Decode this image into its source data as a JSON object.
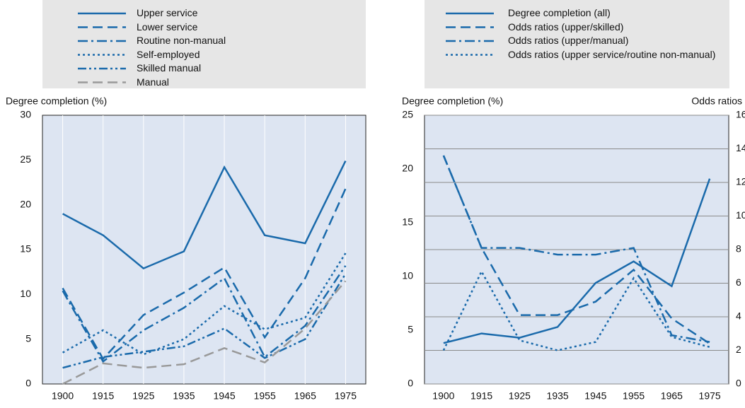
{
  "chart_data": [
    {
      "type": "line",
      "y_label": "Degree completion (%)",
      "categories": [
        "1900",
        "1915",
        "1925",
        "1935",
        "1945",
        "1955",
        "1965",
        "1975"
      ],
      "ylim": [
        0,
        30
      ],
      "yticks": [
        0,
        5,
        10,
        15,
        20,
        25,
        30
      ],
      "grid": "x",
      "series": [
        {
          "name": "Upper service",
          "color": "#1a6aab",
          "dash": "solid",
          "values": [
            19.0,
            16.6,
            12.9,
            14.8,
            24.2,
            16.6,
            15.7,
            24.9
          ]
        },
        {
          "name": "Lower service",
          "color": "#1a6aab",
          "dash": "dash",
          "values": [
            10.7,
            2.8,
            7.7,
            10.2,
            13.0,
            5.2,
            11.8,
            21.8
          ]
        },
        {
          "name": "Routine non-manual",
          "color": "#1a6aab",
          "dash": "dashdot",
          "values": [
            10.4,
            2.5,
            6.0,
            8.5,
            11.8,
            3.0,
            6.5,
            13.2
          ]
        },
        {
          "name": "Self-employed",
          "color": "#1a6aab",
          "dash": "dot",
          "values": [
            3.5,
            6.0,
            3.3,
            5.0,
            8.7,
            6.1,
            7.4,
            14.6
          ]
        },
        {
          "name": "Skilled manual",
          "color": "#1a6aab",
          "dash": "dashdotdot",
          "values": [
            1.8,
            3.0,
            3.6,
            4.2,
            6.2,
            2.9,
            5.0,
            12.3
          ]
        },
        {
          "name": "Manual",
          "color": "#999999",
          "dash": "dash",
          "values": [
            0,
            2.3,
            1.8,
            2.2,
            4.0,
            2.4,
            6.2,
            11.5
          ]
        }
      ]
    },
    {
      "type": "line",
      "y_label": "Degree completion (%)",
      "y2_label": "Odds ratios",
      "categories": [
        "1900",
        "1915",
        "1925",
        "1935",
        "1945",
        "1955",
        "1965",
        "1975"
      ],
      "ylim": [
        0,
        25
      ],
      "yticks": [
        0,
        5,
        10,
        15,
        20,
        25
      ],
      "y2lim": [
        0,
        16
      ],
      "y2ticks": [
        0,
        2,
        4,
        6,
        8,
        10,
        12,
        14,
        16
      ],
      "grid": "y2",
      "series": [
        {
          "name": "Degree completion (all)",
          "color": "#1a6aab",
          "dash": "solid",
          "values": [
            3.8,
            4.7,
            4.3,
            5.3,
            9.4,
            11.4,
            9.1,
            19.1
          ]
        },
        {
          "name": "Odds ratios (upper/skilled)",
          "color": "#1a6aab",
          "dash": "dash",
          "axis": "y2",
          "values": [
            13.6,
            8.1,
            4.1,
            4.1,
            4.9,
            6.8,
            3.9,
            2.4
          ]
        },
        {
          "name": "Odds ratios (upper/manual)",
          "color": "#1a6aab",
          "dash": "dashdot",
          "axis": "y2",
          "values": [
            13.6,
            8.1,
            8.1,
            7.7,
            7.7,
            8.1,
            2.9,
            2.5
          ]
        },
        {
          "name": "Odds ratios (upper service/routine non-manual)",
          "color": "#1a6aab",
          "dash": "dot",
          "axis": "y2",
          "values": [
            2.0,
            6.7,
            2.6,
            2.0,
            2.5,
            6.3,
            2.8,
            2.2
          ]
        }
      ]
    }
  ]
}
